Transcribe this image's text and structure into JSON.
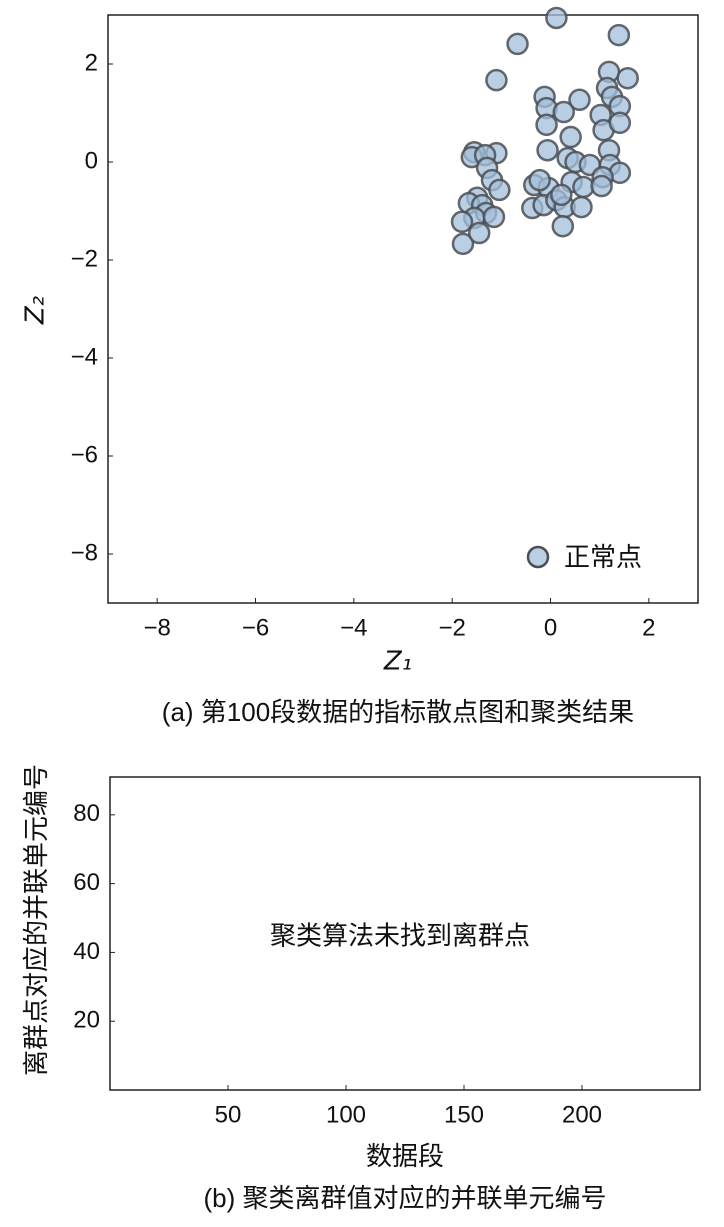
{
  "chart_data": [
    {
      "type": "scatter",
      "xlabel": "Z₁",
      "ylabel": "Z₂",
      "caption": "(a) 第100段数据的指标散点图和聚类结果",
      "xlim": [
        -9,
        3
      ],
      "ylim": [
        -9,
        3
      ],
      "xticks": [
        {
          "value": -8,
          "label": "−8"
        },
        {
          "value": -6,
          "label": "−6"
        },
        {
          "value": -4,
          "label": "−4"
        },
        {
          "value": -2,
          "label": "−2"
        },
        0,
        2
      ],
      "yticks": [
        {
          "value": -8,
          "label": "−8"
        },
        {
          "value": -6,
          "label": "−6"
        },
        {
          "value": -4,
          "label": "−4"
        },
        {
          "value": -2,
          "label": "−2"
        },
        0,
        2
      ],
      "legend": "lower right",
      "series": [
        {
          "name": "正常点",
          "color": "#a3bfd9",
          "x": [
            0.12,
            -0.67,
            1.39,
            -1.1,
            1.19,
            1.57,
            -0.12,
            0.59,
            1.15,
            1.25,
            1.41,
            -0.08,
            0.27,
            1.02,
            1.08,
            1.41,
            -0.08,
            0.41,
            1.19,
            -0.06,
            -1.55,
            -1.1,
            -1.6,
            -1.33,
            -1.29,
            0.35,
            0.51,
            0.8,
            1.21,
            1.41,
            1.06,
            -1.19,
            0.43,
            -0.33,
            -0.04,
            0.67,
            1.04,
            -1.04,
            -1.49,
            -1.66,
            -1.39,
            -0.37,
            -0.14,
            0.12,
            0.29,
            0.63,
            -1.31,
            -1.55,
            -1.15,
            -1.8,
            -1.78,
            -1.45,
            0.25,
            0.22,
            -0.22
          ],
          "values": [
            2.94,
            2.41,
            2.59,
            1.67,
            1.84,
            1.71,
            1.33,
            1.27,
            1.51,
            1.33,
            1.14,
            1.1,
            1.02,
            0.96,
            0.65,
            0.8,
            0.76,
            0.51,
            0.24,
            0.24,
            0.2,
            0.18,
            0.1,
            0.14,
            -0.12,
            0.08,
            0.0,
            -0.06,
            -0.06,
            -0.22,
            -0.31,
            -0.37,
            -0.41,
            -0.47,
            -0.53,
            -0.51,
            -0.49,
            -0.57,
            -0.73,
            -0.84,
            -0.88,
            -0.94,
            -0.88,
            -0.78,
            -0.92,
            -0.92,
            -1.04,
            -1.14,
            -1.12,
            -1.22,
            -1.67,
            -1.45,
            -1.31,
            -0.67,
            -0.37
          ]
        }
      ]
    },
    {
      "type": "scatter",
      "xlabel": "数据段",
      "ylabel": "离群点对应的并联单元编号",
      "caption": "(b) 聚类离群值对应的并联单元编号",
      "annotation": "聚类算法未找到离群点",
      "xlim": [
        0,
        250
      ],
      "ylim": [
        0,
        91
      ],
      "xticks": [
        50,
        100,
        150,
        200
      ],
      "yticks": [
        20,
        40,
        60,
        80
      ]
    }
  ]
}
